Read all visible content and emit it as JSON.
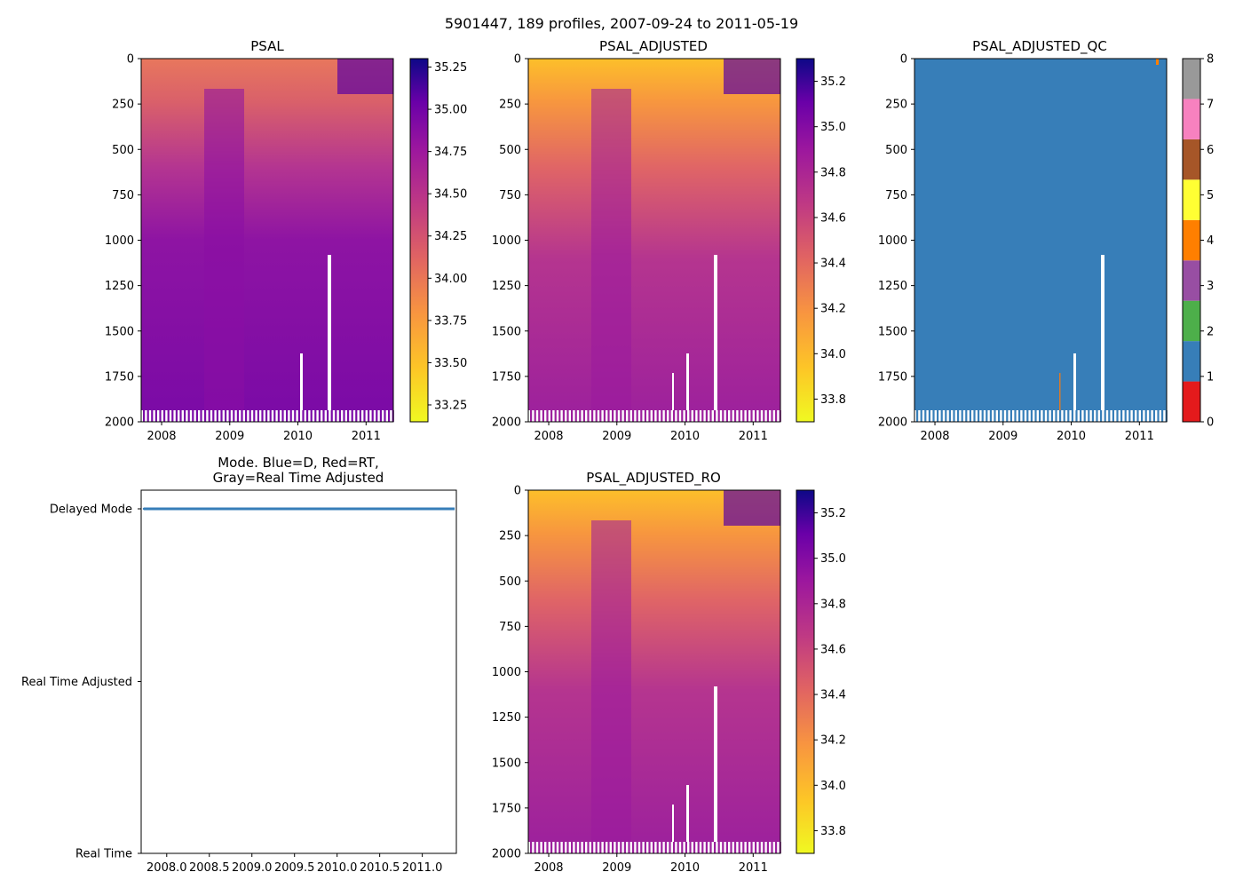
{
  "figure": {
    "suptitle": "5901447, 189 profiles, 2007-09-24 to 2011-05-19"
  },
  "chart_data": [
    {
      "id": "psal",
      "type": "heatmap",
      "title": "PSAL",
      "xlim": [
        2007.7,
        2011.4
      ],
      "ylim": [
        2000,
        0
      ],
      "x_ticks": [
        2008,
        2009,
        2010,
        2011
      ],
      "x_tick_labels": [
        "2008",
        "2009",
        "2010",
        "2011"
      ],
      "y_ticks": [
        0,
        250,
        500,
        750,
        1000,
        1250,
        1500,
        1750,
        2000
      ],
      "y_tick_labels": [
        "0",
        "250",
        "500",
        "750",
        "1000",
        "1250",
        "1500",
        "1750",
        "2000"
      ],
      "colormap": "plasma_r",
      "colorbar": {
        "range": [
          33.15,
          35.3
        ],
        "ticks": [
          33.25,
          33.5,
          33.75,
          34.0,
          34.25,
          34.5,
          34.75,
          35.0,
          35.25
        ],
        "tick_labels": [
          "33.25",
          "33.50",
          "33.75",
          "34.00",
          "34.25",
          "34.50",
          "34.75",
          "35.00",
          "35.25"
        ]
      }
    },
    {
      "id": "psal_adjusted",
      "type": "heatmap",
      "title": "PSAL_ADJUSTED",
      "xlim": [
        2007.7,
        2011.4
      ],
      "ylim": [
        2000,
        0
      ],
      "x_ticks": [
        2008,
        2009,
        2010,
        2011
      ],
      "x_tick_labels": [
        "2008",
        "2009",
        "2010",
        "2011"
      ],
      "y_ticks": [
        0,
        250,
        500,
        750,
        1000,
        1250,
        1500,
        1750,
        2000
      ],
      "y_tick_labels": [
        "0",
        "250",
        "500",
        "750",
        "1000",
        "1250",
        "1500",
        "1750",
        "2000"
      ],
      "colormap": "plasma_r",
      "colorbar": {
        "range": [
          33.7,
          35.3
        ],
        "ticks": [
          33.8,
          34.0,
          34.2,
          34.4,
          34.6,
          34.8,
          35.0,
          35.2
        ],
        "tick_labels": [
          "33.8",
          "34.0",
          "34.2",
          "34.4",
          "34.6",
          "34.8",
          "35.0",
          "35.2"
        ]
      }
    },
    {
      "id": "psal_adjusted_qc",
      "type": "heatmap",
      "title": "PSAL_ADJUSTED_QC",
      "xlim": [
        2007.7,
        2011.4
      ],
      "ylim": [
        2000,
        0
      ],
      "x_ticks": [
        2008,
        2009,
        2010,
        2011
      ],
      "x_tick_labels": [
        "2008",
        "2009",
        "2010",
        "2011"
      ],
      "y_ticks": [
        0,
        250,
        500,
        750,
        1000,
        1250,
        1500,
        1750,
        2000
      ],
      "y_tick_labels": [
        "0",
        "250",
        "500",
        "750",
        "1000",
        "1250",
        "1500",
        "1750",
        "2000"
      ],
      "dominant_flag": 1,
      "colorbar": {
        "range": [
          0,
          8
        ],
        "ticks": [
          0,
          1,
          2,
          3,
          4,
          5,
          6,
          7,
          8
        ],
        "tick_labels": [
          "0",
          "1",
          "2",
          "3",
          "4",
          "5",
          "6",
          "7",
          "8"
        ],
        "colors": [
          "#e41a1c",
          "#377eb8",
          "#4daf4a",
          "#984ea3",
          "#ff7f00",
          "#ffff33",
          "#a65628",
          "#f781bf",
          "#999999"
        ]
      }
    },
    {
      "id": "mode",
      "type": "line",
      "title": "Mode. Blue=D, Red=RT,\nGray=Real Time Adjusted",
      "title_lines": [
        "Mode. Blue=D, Red=RT,",
        "Gray=Real Time Adjusted"
      ],
      "xlim": [
        2007.7,
        2011.4
      ],
      "x_ticks": [
        2008.0,
        2008.5,
        2009.0,
        2009.5,
        2010.0,
        2010.5,
        2011.0
      ],
      "x_tick_labels": [
        "2008.0",
        "2008.5",
        "2009.0",
        "2009.5",
        "2010.0",
        "2010.5",
        "2011.0"
      ],
      "y_categories": [
        "Delayed Mode",
        "Real Time Adjusted",
        "Real Time"
      ],
      "series": [
        {
          "name": "Delayed Mode",
          "color": "#377eb8",
          "x_range": [
            2007.73,
            2011.38
          ],
          "y": "Delayed Mode"
        }
      ]
    },
    {
      "id": "psal_adjusted_ro",
      "type": "heatmap",
      "title": "PSAL_ADJUSTED_RO",
      "xlim": [
        2007.7,
        2011.4
      ],
      "ylim": [
        2000,
        0
      ],
      "x_ticks": [
        2008,
        2009,
        2010,
        2011
      ],
      "x_tick_labels": [
        "2008",
        "2009",
        "2010",
        "2011"
      ],
      "y_ticks": [
        0,
        250,
        500,
        750,
        1000,
        1250,
        1500,
        1750,
        2000
      ],
      "y_tick_labels": [
        "0",
        "250",
        "500",
        "750",
        "1000",
        "1250",
        "1500",
        "1750",
        "2000"
      ],
      "colormap": "plasma_r",
      "colorbar": {
        "range": [
          33.7,
          35.3
        ],
        "ticks": [
          33.8,
          34.0,
          34.2,
          34.4,
          34.6,
          34.8,
          35.0,
          35.2
        ],
        "tick_labels": [
          "33.8",
          "34.0",
          "34.2",
          "34.4",
          "34.6",
          "34.8",
          "35.0",
          "35.2"
        ]
      }
    }
  ]
}
